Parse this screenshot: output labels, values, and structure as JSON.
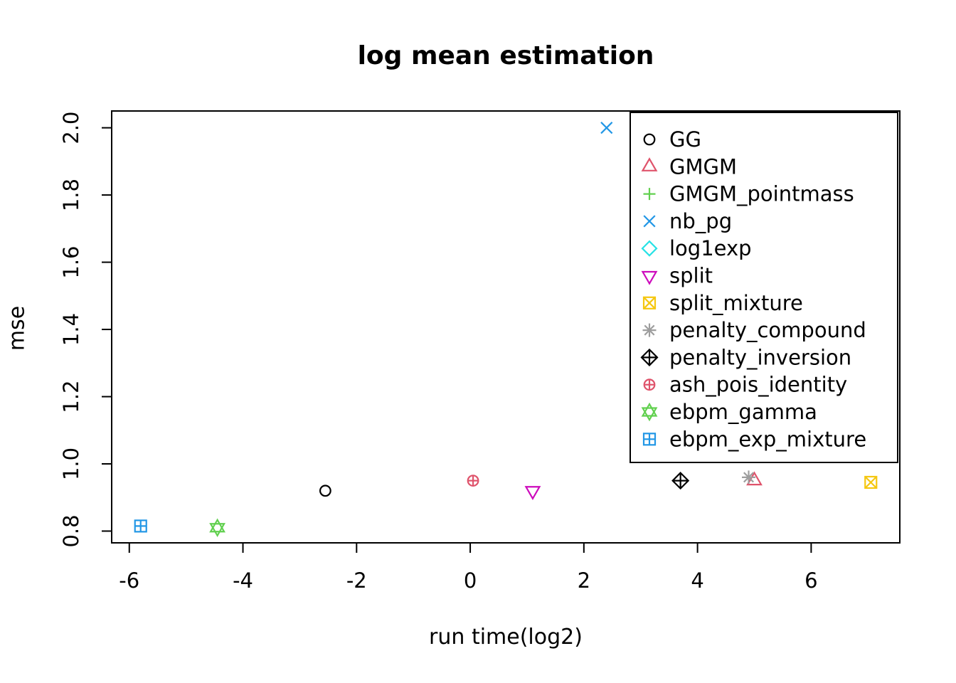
{
  "title": "log mean estimation",
  "colors": {
    "background": "#ffffff",
    "axis": "#000000",
    "palette": [
      "#000000",
      "#DF536B",
      "#61D04F",
      "#2297E6",
      "#28E2E5",
      "#CD0BBC",
      "#F5C710",
      "#9E9E9E"
    ]
  },
  "chart_data": {
    "type": "scatter",
    "title": "log mean estimation",
    "xlabel": "run time(log2)",
    "ylabel": "mse",
    "xlim": [
      -6.31,
      7.56
    ],
    "ylim": [
      0.765,
      2.05
    ],
    "x_ticks": [
      -6,
      -4,
      -2,
      0,
      2,
      4,
      6
    ],
    "y_ticks": [
      0.8,
      1.0,
      1.2,
      1.4,
      1.6,
      1.8,
      2.0
    ],
    "grid": false,
    "legend_position": "top-right-inside",
    "series": [
      {
        "name": "GG",
        "marker": "circle",
        "color": "#000000",
        "points": [
          [
            -2.55,
            0.92
          ]
        ]
      },
      {
        "name": "GMGM",
        "marker": "triangle-up",
        "color": "#DF536B",
        "points": [
          [
            5.0,
            0.95
          ]
        ]
      },
      {
        "name": "GMGM_pointmass",
        "marker": "plus",
        "color": "#61D04F",
        "points": [],
        "note": "no marker visible in plot (hidden behind legend)"
      },
      {
        "name": "nb_pg",
        "marker": "x",
        "color": "#2297E6",
        "points": [
          [
            2.4,
            2.0
          ]
        ]
      },
      {
        "name": "log1exp",
        "marker": "diamond",
        "color": "#28E2E5",
        "points": [],
        "note": "no marker visible in plot (hidden behind legend)"
      },
      {
        "name": "split",
        "marker": "triangle-down",
        "color": "#CD0BBC",
        "points": [
          [
            1.1,
            0.92
          ]
        ]
      },
      {
        "name": "split_mixture",
        "marker": "square-x",
        "color": "#F5C710",
        "points": [
          [
            7.05,
            0.945
          ]
        ]
      },
      {
        "name": "penalty_compound",
        "marker": "asterisk",
        "color": "#9E9E9E",
        "points": [
          [
            4.9,
            0.96
          ]
        ]
      },
      {
        "name": "penalty_inversion",
        "marker": "diamond-plus",
        "color": "#000000",
        "points": [
          [
            3.7,
            0.95
          ]
        ]
      },
      {
        "name": "ash_pois_identity",
        "marker": "circle-plus",
        "color": "#DF536B",
        "points": [
          [
            0.05,
            0.95
          ]
        ]
      },
      {
        "name": "ebpm_gamma",
        "marker": "star-of-david",
        "color": "#61D04F",
        "points": [
          [
            -4.45,
            0.81
          ]
        ]
      },
      {
        "name": "ebpm_exp_mixture",
        "marker": "square-plus",
        "color": "#2297E6",
        "points": [
          [
            -5.8,
            0.815
          ]
        ]
      }
    ]
  }
}
